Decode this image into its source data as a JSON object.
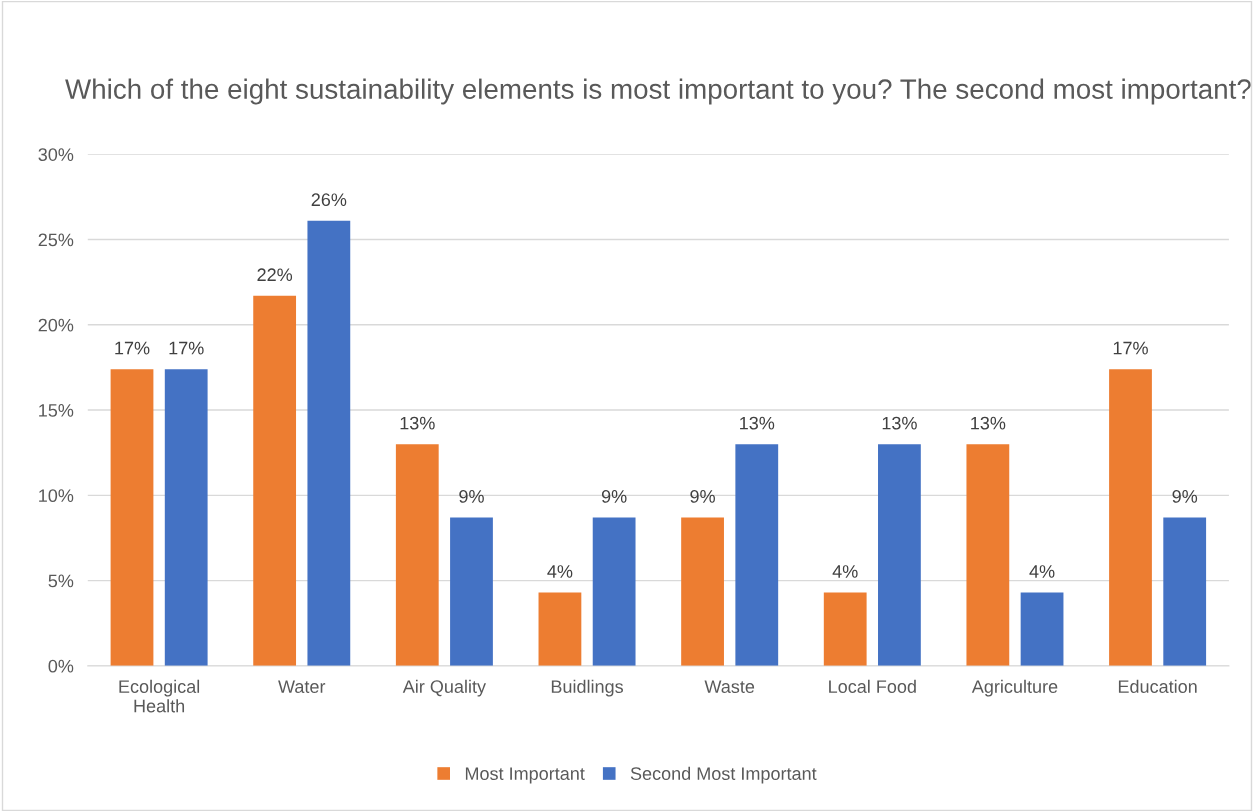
{
  "chart_data": {
    "type": "bar",
    "title": "Which of the eight sustainability elements is most important to you? The second most important?",
    "categories": [
      "Ecological\nHealth",
      "Water",
      "Air Quality",
      "Buidlings",
      "Waste",
      "Local Food",
      "Agriculture",
      "Education"
    ],
    "series": [
      {
        "name": "Most Important",
        "color": "#ed7d31",
        "values": [
          17.4,
          21.7,
          13.0,
          4.3,
          8.7,
          4.3,
          13.0,
          17.4
        ],
        "value_labels": [
          "17%",
          "22%",
          "13%",
          "4%",
          "9%",
          "4%",
          "13%",
          "17%"
        ]
      },
      {
        "name": "Second Most Important",
        "color": "#4472c4",
        "values": [
          17.4,
          26.1,
          8.7,
          8.7,
          13.0,
          13.0,
          4.3,
          8.7
        ],
        "value_labels": [
          "17%",
          "26%",
          "9%",
          "9%",
          "13%",
          "13%",
          "4%",
          "9%"
        ]
      }
    ],
    "ylim": [
      0,
      30
    ],
    "yticks": [
      {
        "value": 0,
        "label": "0%"
      },
      {
        "value": 5,
        "label": "5%"
      },
      {
        "value": 10,
        "label": "10%"
      },
      {
        "value": 15,
        "label": "15%"
      },
      {
        "value": 20,
        "label": "20%"
      },
      {
        "value": 25,
        "label": "25%"
      },
      {
        "value": 30,
        "label": "30%"
      }
    ],
    "grid": "y",
    "legend": "bottom"
  }
}
